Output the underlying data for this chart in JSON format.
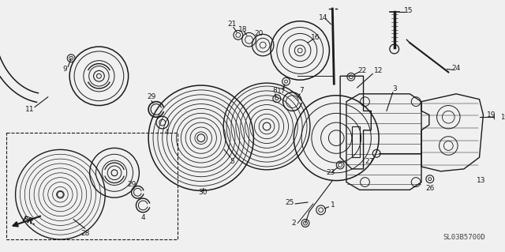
{
  "bg_color": "#f0f0f0",
  "line_color": "#1a1a1a",
  "diagram_code": "SL03B5700D",
  "fig_width": 6.4,
  "fig_height": 3.19,
  "dpi": 100
}
